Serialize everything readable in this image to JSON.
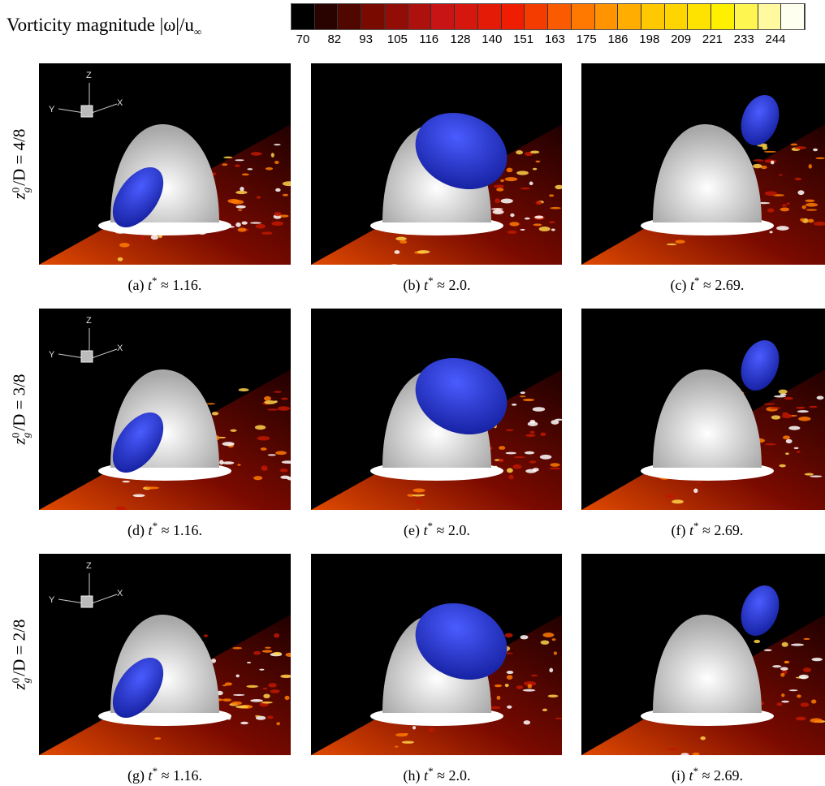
{
  "header": {
    "title": {
      "text": "Vorticity magnitude |ω|/u",
      "sub": "∞"
    },
    "colorbar_ticks": [
      70,
      82,
      93,
      105,
      116,
      128,
      140,
      151,
      163,
      175,
      186,
      198,
      209,
      221,
      233,
      244
    ]
  },
  "rows": [
    {
      "label": {
        "var": "z",
        "sup": "0",
        "sub": "g",
        "rest": "/D = 4/8"
      },
      "panels": [
        {
          "axes": [
            "Z",
            "Y",
            "X"
          ],
          "caption": {
            "tag": "(a)",
            "var": "t",
            "sup": "*",
            "rest": "≈ 1.16."
          }
        },
        {
          "caption": {
            "tag": "(b)",
            "var": "t",
            "sup": "*",
            "rest": "≈ 2.0."
          }
        },
        {
          "caption": {
            "tag": "(c)",
            "var": "t",
            "sup": "*",
            "rest": "≈ 2.69."
          }
        }
      ]
    },
    {
      "label": {
        "var": "z",
        "sup": "0",
        "sub": "g",
        "rest": "/D = 3/8"
      },
      "panels": [
        {
          "axes": [
            "Z",
            "Y",
            "X"
          ],
          "caption": {
            "tag": "(d)",
            "var": "t",
            "sup": "*",
            "rest": "≈ 1.16."
          }
        },
        {
          "caption": {
            "tag": "(e)",
            "var": "t",
            "sup": "*",
            "rest": "≈ 2.0."
          }
        },
        {
          "caption": {
            "tag": "(f)",
            "var": "t",
            "sup": "*",
            "rest": "≈ 2.69."
          }
        }
      ]
    },
    {
      "label": {
        "var": "z",
        "sup": "0",
        "sub": "g",
        "rest": "/D = 2/8"
      },
      "panels": [
        {
          "axes": [
            "Z",
            "Y",
            "X"
          ],
          "caption": {
            "tag": "(g)",
            "var": "t",
            "sup": "*",
            "rest": "≈ 1.16."
          }
        },
        {
          "caption": {
            "tag": "(h)",
            "var": "t",
            "sup": "*",
            "rest": "≈ 2.0."
          }
        },
        {
          "caption": {
            "tag": "(i)",
            "var": "t",
            "sup": "*",
            "rest": "≈ 2.69."
          }
        }
      ]
    }
  ]
}
